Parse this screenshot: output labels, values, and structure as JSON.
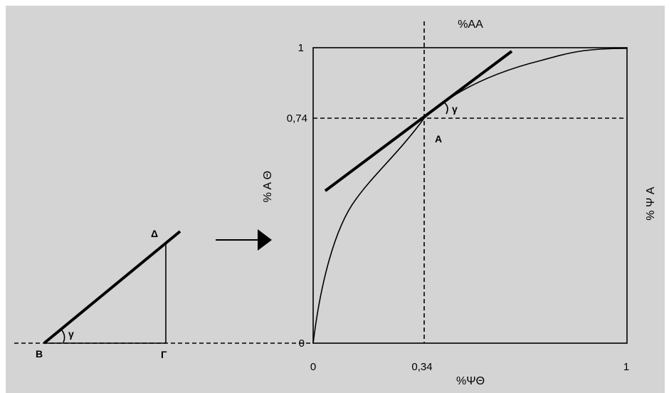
{
  "diagram": {
    "left_triangle": {
      "vertex_b": "B",
      "vertex_gamma": "Γ",
      "vertex_delta": "Δ",
      "angle": "γ"
    },
    "right_chart": {
      "top_label": "%AA",
      "left_label": "% A Θ",
      "right_label": "% Ψ A",
      "bottom_label": "%ΨΘ",
      "y_tick_top": "1",
      "y_tick_mid": "0,74",
      "y_tick_zero": "0",
      "x_tick_zero": "0",
      "x_tick_mid": "0,34",
      "x_tick_one": "1",
      "point_label": "A",
      "angle": "γ"
    }
  }
}
